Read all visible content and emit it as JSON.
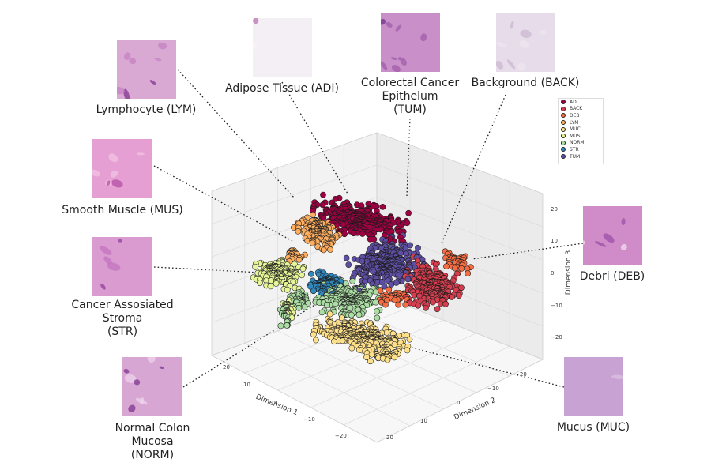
{
  "chart_data": {
    "type": "scatter",
    "projection": "3d",
    "grid": true,
    "legend_position": "top-right",
    "axes": {
      "x": {
        "label": "Dimension 1",
        "ticks": [
          "20",
          "10",
          "0",
          "−10",
          "−20"
        ]
      },
      "y": {
        "label": "Dimension 2",
        "ticks": [
          "−20",
          "−10",
          "0",
          "10",
          "20"
        ]
      },
      "z": {
        "label": "Dimension 3",
        "ticks": [
          "20",
          "10",
          "0",
          "−10",
          "−20"
        ]
      }
    },
    "series": [
      {
        "name": "ADI",
        "color": "#9e0142",
        "label": "Adipose Tissue (ADI)"
      },
      {
        "name": "BACK",
        "color": "#d53e4f",
        "label": "Background (BACK)"
      },
      {
        "name": "DEB",
        "color": "#f46d43",
        "label": "Debri (DEB)"
      },
      {
        "name": "LYM",
        "color": "#fdae61",
        "label": "Lymphocyte (LYM)"
      },
      {
        "name": "MUC",
        "color": "#fee08b",
        "label": "Mucus (MUC)"
      },
      {
        "name": "MUS",
        "color": "#e6f598",
        "label": "Smooth Muscle (MUS)"
      },
      {
        "name": "NORM",
        "color": "#abdda4",
        "label": "Normal Colon\nMucosa\n(NORM)"
      },
      {
        "name": "STR",
        "color": "#3288bd",
        "label": "Cancer Assosiated\nStroma\n(STR)"
      },
      {
        "name": "TUM",
        "color": "#5e4fa2",
        "label": "Colorectal Cancer\nEpithelum\n(TUM)"
      }
    ]
  }
}
